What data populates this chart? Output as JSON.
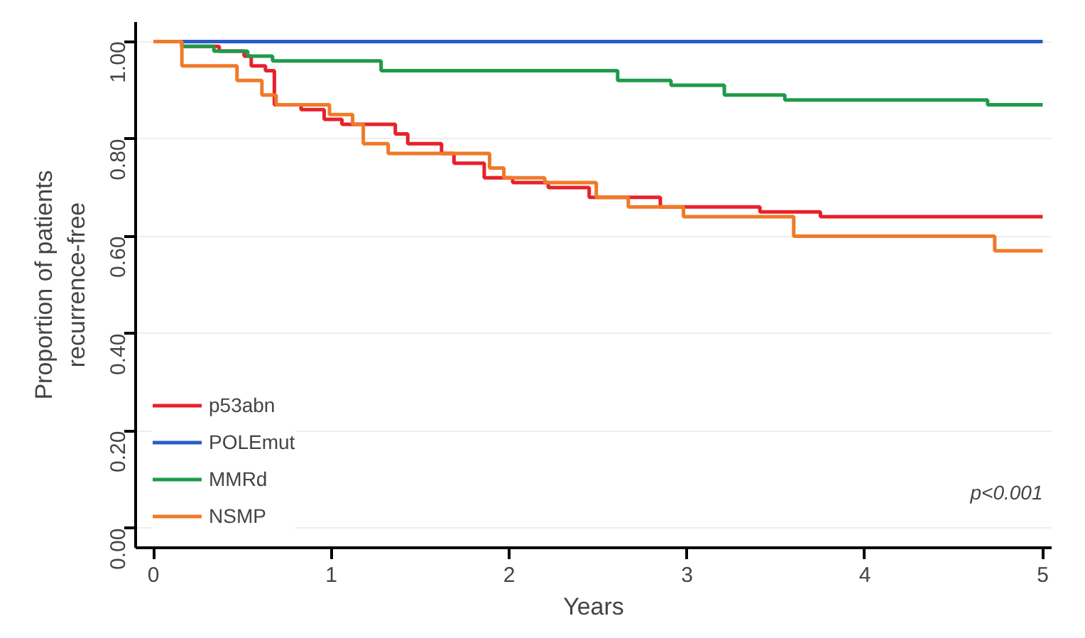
{
  "chart_data": {
    "type": "step",
    "xlabel": "Years",
    "ylabel": "Proportion of patients\nrecurrence-free",
    "xlim": [
      -0.1,
      5.05
    ],
    "ylim": [
      -0.04,
      1.04
    ],
    "xticks": [
      0,
      1,
      2,
      3,
      4,
      5
    ],
    "yticks": [
      {
        "value": 0,
        "label": "0.00"
      },
      {
        "value": 0.2,
        "label": "0.20"
      },
      {
        "value": 0.4,
        "label": "0.40"
      },
      {
        "value": 0.6,
        "label": "0.60"
      },
      {
        "value": 0.8,
        "label": "0.80"
      },
      {
        "value": 1,
        "label": "1.00"
      }
    ],
    "grid": "y",
    "legend": "bottom left",
    "line_style": "solid",
    "marker": "none",
    "annotations": [
      "p<0.001"
    ],
    "series": [
      {
        "name": "p53abn",
        "color": "#e8202a",
        "x": [
          0,
          0.16,
          0.37,
          0.51,
          0.55,
          0.63,
          0.68,
          0.83,
          0.96,
          1.06,
          1.36,
          1.43,
          1.62,
          1.69,
          1.86,
          2.02,
          2.22,
          2.45,
          2.85,
          3.41,
          3.51,
          3.75,
          5
        ],
        "values": [
          1,
          0.99,
          0.98,
          0.97,
          0.95,
          0.94,
          0.87,
          0.86,
          0.84,
          0.83,
          0.81,
          0.79,
          0.77,
          0.75,
          0.72,
          0.71,
          0.7,
          0.68,
          0.66,
          0.65,
          0.65,
          0.64,
          0.64
        ]
      },
      {
        "name": "POLEmut",
        "color": "#2a5cc8",
        "x": [
          0,
          5
        ],
        "values": [
          1,
          1
        ]
      },
      {
        "name": "MMRd",
        "color": "#1f9a4a",
        "x": [
          0,
          0.16,
          0.34,
          0.53,
          0.67,
          1.28,
          1.53,
          2.61,
          2.91,
          3.21,
          3.55,
          4.69,
          5
        ],
        "values": [
          1,
          0.99,
          0.98,
          0.97,
          0.96,
          0.94,
          0.94,
          0.92,
          0.91,
          0.89,
          0.88,
          0.87,
          0.87
        ]
      },
      {
        "name": "NSMP",
        "color": "#f07a28",
        "x": [
          0,
          0.16,
          0.47,
          0.61,
          0.69,
          0.99,
          1.12,
          1.18,
          1.32,
          1.89,
          1.97,
          2.2,
          2.49,
          2.67,
          2.98,
          3.6,
          4.73,
          5
        ],
        "values": [
          1,
          0.95,
          0.92,
          0.89,
          0.87,
          0.85,
          0.83,
          0.79,
          0.77,
          0.74,
          0.72,
          0.71,
          0.68,
          0.66,
          0.64,
          0.6,
          0.57,
          0.57
        ]
      }
    ]
  }
}
